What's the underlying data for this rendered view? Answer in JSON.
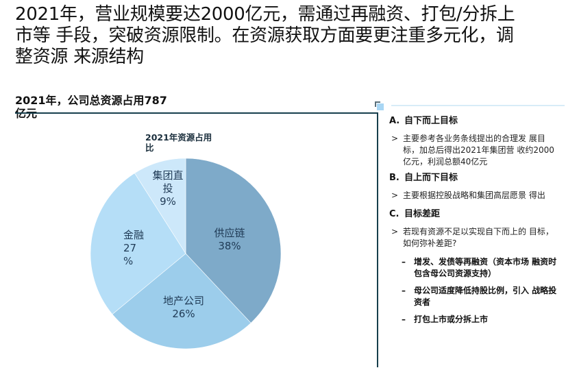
{
  "headline": {
    "lines": [
      "2021年，营业规模要达2000亿元，需通过再融资、打包/分拆上",
      "市等 手段，突破资源限制。在资源获取方面要更注重多元化，调",
      "整资源 来源结构"
    ]
  },
  "left_panel": {
    "title_lines": [
      "2021年，公司总资源占用787",
      "亿元"
    ],
    "chart_title_lines": [
      "2021年资源占用",
      "比"
    ]
  },
  "chart_data": {
    "type": "pie",
    "title": "2021年资源占用比",
    "categories": [
      "供应链",
      "地产公司",
      "金融",
      "集团直投"
    ],
    "values": [
      38,
      26,
      27,
      9
    ],
    "unit": "%",
    "colors": [
      "#7EAAC9",
      "#9CCDEB",
      "#B5DEF7",
      "#CDE8FA"
    ],
    "start_angle_deg": 0,
    "direction": "clockwise",
    "labels": [
      {
        "lines": [
          "供应链",
          "38%"
        ]
      },
      {
        "lines": [
          "地产公司",
          "26%"
        ]
      },
      {
        "lines": [
          "金融",
          "27",
          "%"
        ]
      },
      {
        "lines": [
          "集团直",
          "投",
          "9%"
        ]
      }
    ]
  },
  "right_panel": {
    "sections": [
      {
        "letter": "A.",
        "title": "自下而上目标",
        "items": [
          {
            "marker": ">",
            "text": "主要参考各业务条线提出的合理发 展目标，加总后得出2021年集团营 收约2000亿元，利润总额40亿元"
          }
        ]
      },
      {
        "letter": "B.",
        "title": "自上而下目标",
        "items": [
          {
            "marker": ">",
            "text": "主要根据控股战略和集团高层愿景 得出"
          }
        ]
      },
      {
        "letter": "C.",
        "title": "目标差距",
        "items": [
          {
            "marker": ">",
            "text": "若现有资源不足以实现自下而上的 目标，如何弥补差距?"
          }
        ],
        "sub_items": [
          {
            "marker": "–",
            "text": "增发、发债等再融资（资本市场 融资时包含母公司资源支持）"
          },
          {
            "marker": "–",
            "text": "母公司适度降低持股比例，引入 战略投资者"
          },
          {
            "marker": "–",
            "text": "打包上市或分拆上市"
          }
        ]
      }
    ]
  }
}
